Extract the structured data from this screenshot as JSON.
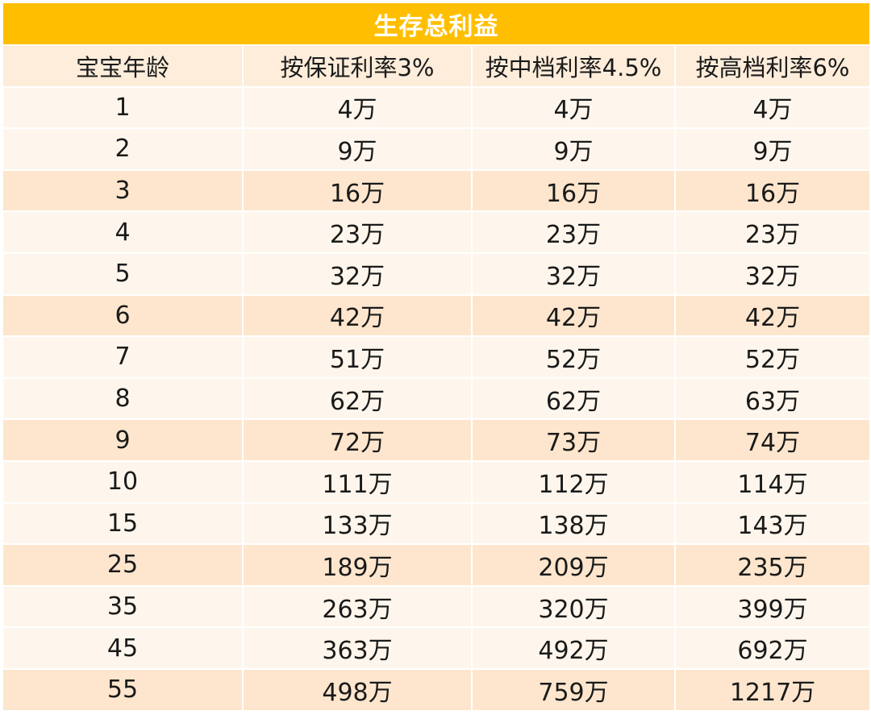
{
  "table": {
    "title": "生存总利益",
    "headers": [
      "宝宝年龄",
      "按保证利率3%",
      "按中档利率4.5%",
      "按高档利率6%"
    ],
    "rows": [
      [
        "1",
        "4万",
        "4万",
        "4万"
      ],
      [
        "2",
        "9万",
        "9万",
        "9万"
      ],
      [
        "3",
        "16万",
        "16万",
        "16万"
      ],
      [
        "4",
        "23万",
        "23万",
        "23万"
      ],
      [
        "5",
        "32万",
        "32万",
        "32万"
      ],
      [
        "6",
        "42万",
        "42万",
        "42万"
      ],
      [
        "7",
        "51万",
        "52万",
        "52万"
      ],
      [
        "8",
        "62万",
        "62万",
        "63万"
      ],
      [
        "9",
        "72万",
        "73万",
        "74万"
      ],
      [
        "10",
        "111万",
        "112万",
        "114万"
      ],
      [
        "15",
        "133万",
        "138万",
        "143万"
      ],
      [
        "25",
        "189万",
        "209万",
        "235万"
      ],
      [
        "35",
        "263万",
        "320万",
        "399万"
      ],
      [
        "45",
        "363万",
        "492万",
        "692万"
      ],
      [
        "55",
        "498万",
        "759万",
        "1217万"
      ]
    ]
  },
  "colors": {
    "title_bg": "#ffbf00",
    "title_text": "#ffffff",
    "header_bg": "#fdedda",
    "row_light": "#fef6ec",
    "row_dark": "#fde6cd"
  }
}
